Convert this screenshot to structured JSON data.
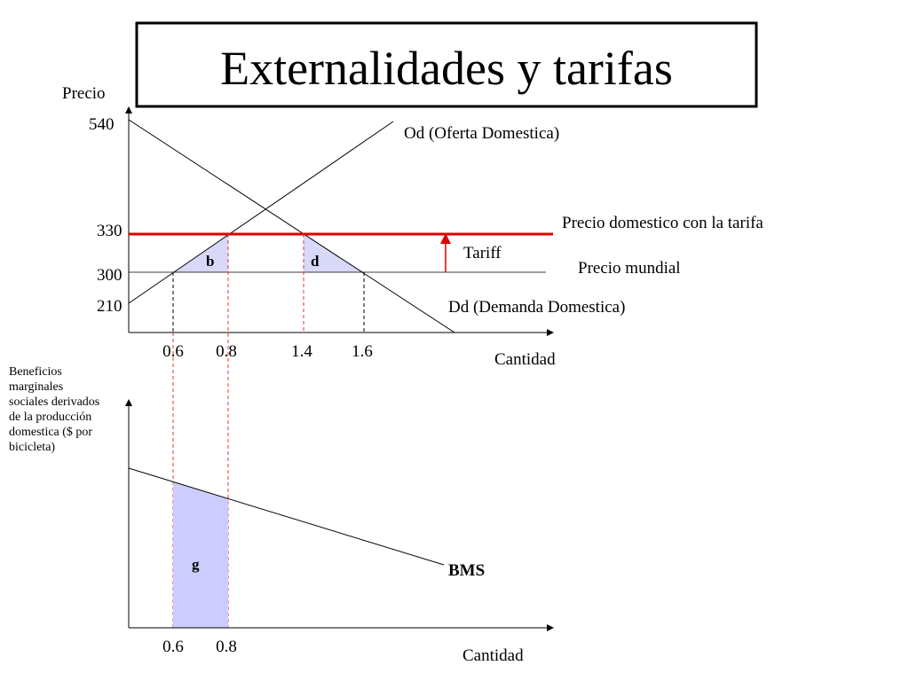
{
  "title": "Externalidades y tarifas",
  "top_graph": {
    "y_axis_label": "Precio",
    "x_axis_label": "Cantidad",
    "y_ticks": [
      "540",
      "330",
      "300",
      "210"
    ],
    "x_ticks": [
      "0.6",
      "0.8",
      "1.4",
      "1.6"
    ],
    "curves": {
      "supply": "Od (Oferta Domestica)",
      "tariff_price": "Precio domestico con la tarifa",
      "world_price": "Precio mundial",
      "demand": "Dd (Demanda Domestica)"
    },
    "tariff": "Tariff",
    "areas": [
      "b",
      "d"
    ]
  },
  "bottom_graph": {
    "y_axis_label": [
      "Beneficios",
      "marginales",
      "sociales derivados",
      "de la producción",
      "domestica ($ por",
      "bicicleta)"
    ],
    "x_axis_label": "Cantidad",
    "x_ticks": [
      "0.6",
      "0.8"
    ],
    "curve": "BMS",
    "area": "g"
  }
}
